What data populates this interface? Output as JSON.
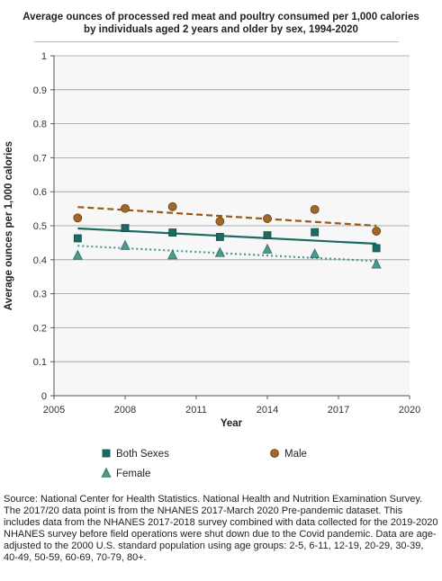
{
  "chart_data": {
    "type": "scatter",
    "title": "Average ounces of processed red meat and poultry consumed per 1,000 calories by individuals aged 2 years and older by sex, 1994-2020",
    "xlabel": "Year",
    "ylabel": "Average ounces per 1,000 calories",
    "xlim": [
      2005,
      2020
    ],
    "ylim": [
      0,
      1
    ],
    "x_ticks": [
      "2005",
      "2008",
      "2011",
      "2014",
      "2017",
      "2020"
    ],
    "y_ticks": [
      "0",
      "0.1",
      "0.2",
      "0.3",
      "0.4",
      "0.5",
      "0.6",
      "0.7",
      "0.8",
      "0.9",
      "1"
    ],
    "grid": "horizontal",
    "legend_position": "bottom",
    "x": [
      2006,
      2008,
      2010,
      2012,
      2014,
      2016,
      2018.6
    ],
    "series": [
      {
        "name": "Both Sexes",
        "marker": "square",
        "color": "#1c6b63",
        "values": [
          0.463,
          0.493,
          0.48,
          0.467,
          0.472,
          0.481,
          0.434
        ],
        "trend": [
          0.492,
          0.447
        ],
        "trend_style": "solid"
      },
      {
        "name": "Male",
        "marker": "circle",
        "color": "#9a5a16",
        "fill": "#a0662a",
        "values": [
          0.523,
          0.551,
          0.556,
          0.513,
          0.521,
          0.548,
          0.484
        ],
        "trend": [
          0.555,
          0.5
        ],
        "trend_style": "dashed"
      },
      {
        "name": "Female",
        "marker": "triangle",
        "color": "#4a9a90",
        "values": [
          0.413,
          0.442,
          0.414,
          0.421,
          0.431,
          0.417,
          0.387
        ],
        "trend": [
          0.441,
          0.396
        ],
        "trend_style": "dotted"
      }
    ]
  },
  "source": {
    "line1": "Source: National Center for Health Statistics. National Health and Nutrition Examination Survey.",
    "line2": "The 2017/20 data point is from the NHANES 2017-March 2020 Pre-pandemic dataset. This includes data from the NHANES 2017-2018 survey combined with data collected for the 2019-2020 NHANES survey before field operations were shut down due to the Covid pandemic. Data are age-adjusted to the 2000 U.S. standard population using age groups: 2-5, 6-11, 12-19, 20-29, 30-39, 40-49, 50-59, 60-69, 70-79, 80+."
  }
}
